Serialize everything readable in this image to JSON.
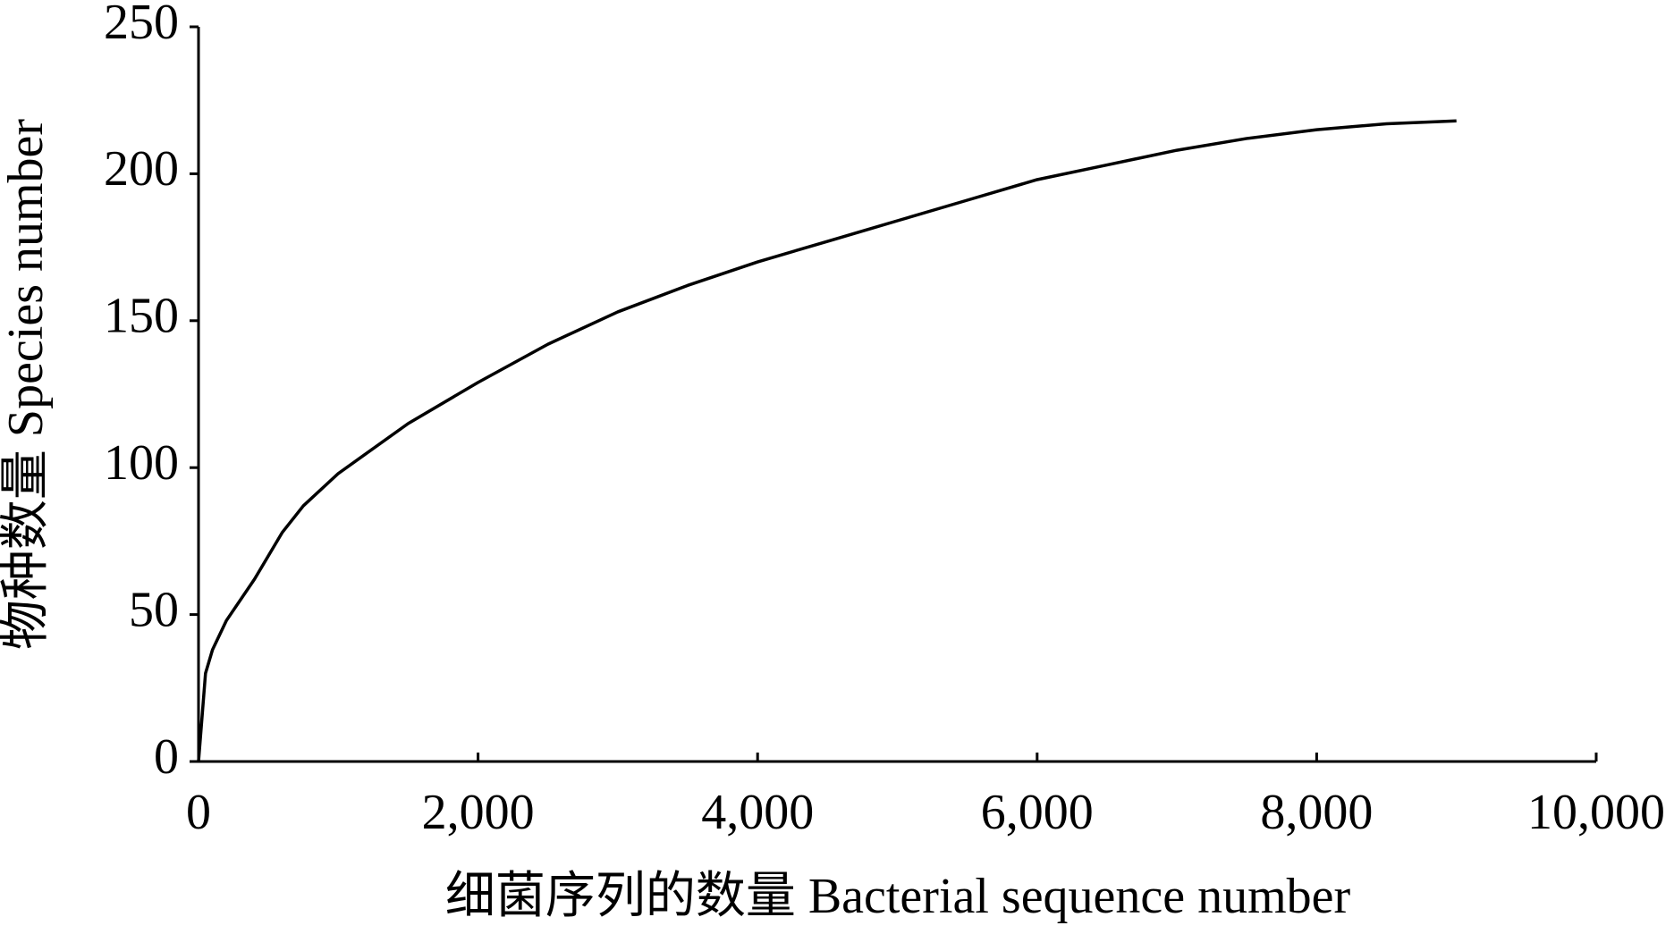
{
  "chart_data": {
    "type": "line",
    "x_label": "细菌序列的数量 Bacterial sequence number",
    "y_label": "物种数量 Species number",
    "x": [
      0,
      50,
      100,
      200,
      400,
      600,
      750,
      1000,
      1500,
      2000,
      2500,
      3000,
      3500,
      4000,
      4500,
      5000,
      5500,
      6000,
      6500,
      7000,
      7500,
      8000,
      8500,
      9000
    ],
    "series": [
      {
        "color": "#000000",
        "values": [
          0,
          30,
          38,
          48,
          62,
          78,
          87,
          98,
          115,
          129,
          142,
          153,
          162,
          170,
          177,
          184,
          191,
          198,
          203,
          208,
          212,
          215,
          217,
          218
        ]
      }
    ],
    "xlim": [
      0,
      10000
    ],
    "xticks": [
      0,
      {
        "value": 2000,
        "label": "2,000"
      },
      {
        "value": 4000,
        "label": "4,000"
      },
      {
        "value": 6000,
        "label": "6,000"
      },
      {
        "value": 8000,
        "label": "8,000"
      },
      {
        "value": 10000,
        "label": "10,000"
      }
    ],
    "ylim": [
      0,
      250
    ],
    "yticks": [
      0,
      50,
      100,
      150,
      200,
      250
    ],
    "grid": false
  }
}
